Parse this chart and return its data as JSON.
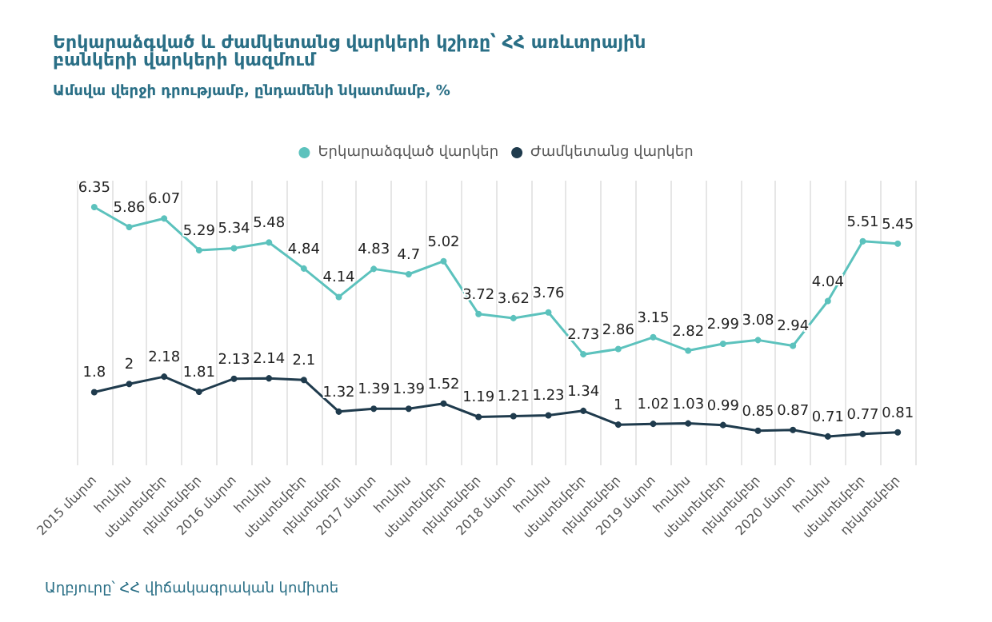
{
  "chart_data": {
    "type": "line",
    "title": "Երկարաձգված և ժամկետանց վարկերի կշիռը՝ ՀՀ առևտրային բանկերի վարկերի կազմում",
    "subtitle": "Ամսվա վերջի դրությամբ, ընդամենի նկատմամբ, %",
    "categories": [
      "2015 մարտ",
      "հունիս",
      "սեպտեմբեր",
      "դեկտեմբեր",
      "2016 մարտ",
      "հունիս",
      "սեպտեմբեր",
      "դեկտեմբեր",
      "2017 մարտ",
      "հունիս",
      "սեպտեմբեր",
      "դեկտեմբեր",
      "2018 մարտ",
      "հունիս",
      "սեպտեմբեր",
      "դեկտեմբեր",
      "2019 մարտ",
      "հունիս",
      "սեպտեմբեր",
      "դեկտեմբեր",
      "2020 մարտ",
      "հունիս",
      "սեպտեմբեր",
      "դեկտեմբեր"
    ],
    "series": [
      {
        "name": "Երկարաձգված վարկեր",
        "color": "#5cc2bd",
        "values": [
          6.35,
          5.86,
          6.07,
          5.29,
          5.34,
          5.48,
          4.84,
          4.14,
          4.83,
          4.7,
          5.02,
          3.72,
          3.62,
          3.76,
          2.73,
          2.86,
          3.15,
          2.82,
          2.99,
          3.08,
          2.94,
          4.04,
          5.51,
          5.45
        ]
      },
      {
        "name": "Ժամկետանց վարկեր",
        "color": "#1f3b4d",
        "values": [
          1.8,
          2,
          2.18,
          1.81,
          2.13,
          2.14,
          2.1,
          1.32,
          1.39,
          1.39,
          1.52,
          1.19,
          1.21,
          1.23,
          1.34,
          1,
          1.02,
          1.03,
          0.99,
          0.85,
          0.87,
          0.71,
          0.77,
          0.81
        ]
      }
    ],
    "annotations": [
      "Աղբյուրը՝ ՀՀ վիճակագրական կոմիտե"
    ],
    "data_labels": true,
    "grid": "x",
    "legend": "top",
    "marker": "circle",
    "line_style": "solid",
    "tick_labels": "x"
  }
}
